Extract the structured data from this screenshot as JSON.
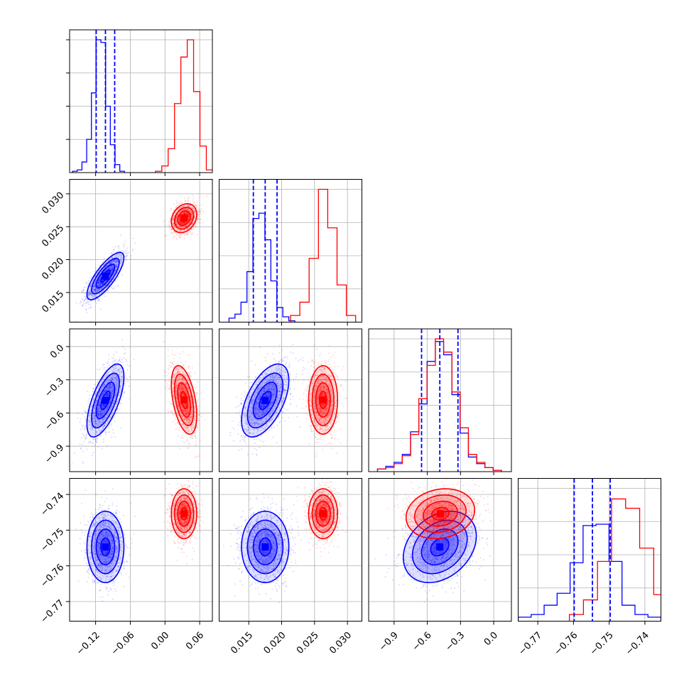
{
  "chart_data": {
    "type": "corner",
    "grid": true,
    "parameters": [
      {
        "range": [
          -0.165,
          0.082
        ],
        "ticks": [
          -0.12,
          -0.06,
          0.0,
          0.06
        ],
        "tick_labels": [
          "−0.12",
          "−0.06",
          "0.00",
          "0.06"
        ]
      },
      {
        "range": [
          0.0105,
          0.0322
        ],
        "ticks": [
          0.015,
          0.02,
          0.025,
          0.03
        ],
        "tick_labels": [
          "0.015",
          "0.020",
          "0.025",
          "0.030"
        ]
      },
      {
        "range": [
          -1.13,
          0.16
        ],
        "ticks": [
          -0.9,
          -0.6,
          -0.3,
          0.0
        ],
        "tick_labels": [
          "−0.9",
          "−0.6",
          "−0.3",
          "0.0"
        ]
      },
      {
        "range": [
          -0.7755,
          -0.7355
        ],
        "ticks": [
          -0.77,
          -0.76,
          -0.75,
          -0.74
        ],
        "tick_labels": [
          "−0.77",
          "−0.76",
          "−0.75",
          "−0.74"
        ]
      }
    ],
    "series": [
      {
        "color": "#0000ff",
        "mean": [
          -0.103,
          0.0175,
          -0.487,
          -0.7547
        ],
        "std": [
          0.016,
          0.0018,
          0.165,
          0.005
        ],
        "corr": [
          [
            1,
            0.78,
            0.65,
            0.0
          ],
          [
            0.78,
            1,
            0.55,
            0.0
          ],
          [
            0.65,
            0.55,
            1,
            0.3
          ],
          [
            0.0,
            0.0,
            0.3,
            1
          ]
        ],
        "quantile_lines": [
          [
            -0.119,
            -0.103,
            -0.087
          ],
          [
            0.0157,
            0.0175,
            0.0193
          ],
          [
            -0.652,
            -0.487,
            -0.323
          ],
          [
            -0.7598,
            -0.7547,
            -0.7497
          ]
        ]
      },
      {
        "color": "#ff0000",
        "mean": [
          0.033,
          0.0263,
          -0.482,
          -0.7454
        ],
        "std": [
          0.011,
          0.0011,
          0.155,
          0.0035
        ],
        "corr": [
          [
            1,
            0.25,
            -0.45,
            0.0
          ],
          [
            0.25,
            1,
            0.0,
            0.0
          ],
          [
            -0.45,
            0.0,
            1,
            0.15
          ],
          [
            0.0,
            0.0,
            0.15,
            1
          ]
        ],
        "quantile_lines": []
      }
    ],
    "hist_heights": [
      {
        "bins": [
          -0.16,
          -0.07
        ],
        "counts": [
          [
            0.01,
            0.02,
            0.08,
            0.25,
            0.6,
            1.0,
            0.98,
            0.5,
            0.21,
            0.06,
            0.01
          ]
        ]
      },
      {
        "bins": [
          0.012,
          0.022
        ],
        "counts": [
          [
            0.03,
            0.06,
            0.15,
            0.38,
            0.78,
            0.82,
            0.62,
            0.31,
            0.11,
            0.04,
            0.01
          ]
        ]
      },
      {
        "bins": [
          -1.05,
          0.07
        ],
        "counts": [
          [
            0.02,
            0.04,
            0.07,
            0.13,
            0.3,
            0.51,
            0.83,
            0.98,
            0.88,
            0.58,
            0.29,
            0.11,
            0.06,
            0.03,
            0.01
          ]
        ]
      },
      {
        "bins": [
          -0.7755,
          -0.7355
        ],
        "counts": [
          [
            0.03,
            0.05,
            0.12,
            0.21,
            0.44,
            0.72,
            0.73,
            0.45,
            0.12,
            0.05,
            0.03
          ]
        ]
      }
    ],
    "hist_heights_red": [
      [
        0.01,
        0.05,
        0.18,
        0.52,
        0.87,
        1.0,
        0.61,
        0.2,
        0.02
      ],
      [
        0.05,
        0.15,
        0.48,
        1.0,
        0.71,
        0.28,
        0.05
      ],
      [
        0.02,
        0.03,
        0.06,
        0.12,
        0.28,
        0.55,
        0.8,
        1.0,
        0.9,
        0.6,
        0.33,
        0.13,
        0.07,
        0.03,
        0.01
      ],
      [
        0.05,
        0.16,
        0.45,
        0.92,
        0.85,
        0.55,
        0.2,
        0.06
      ]
    ]
  }
}
